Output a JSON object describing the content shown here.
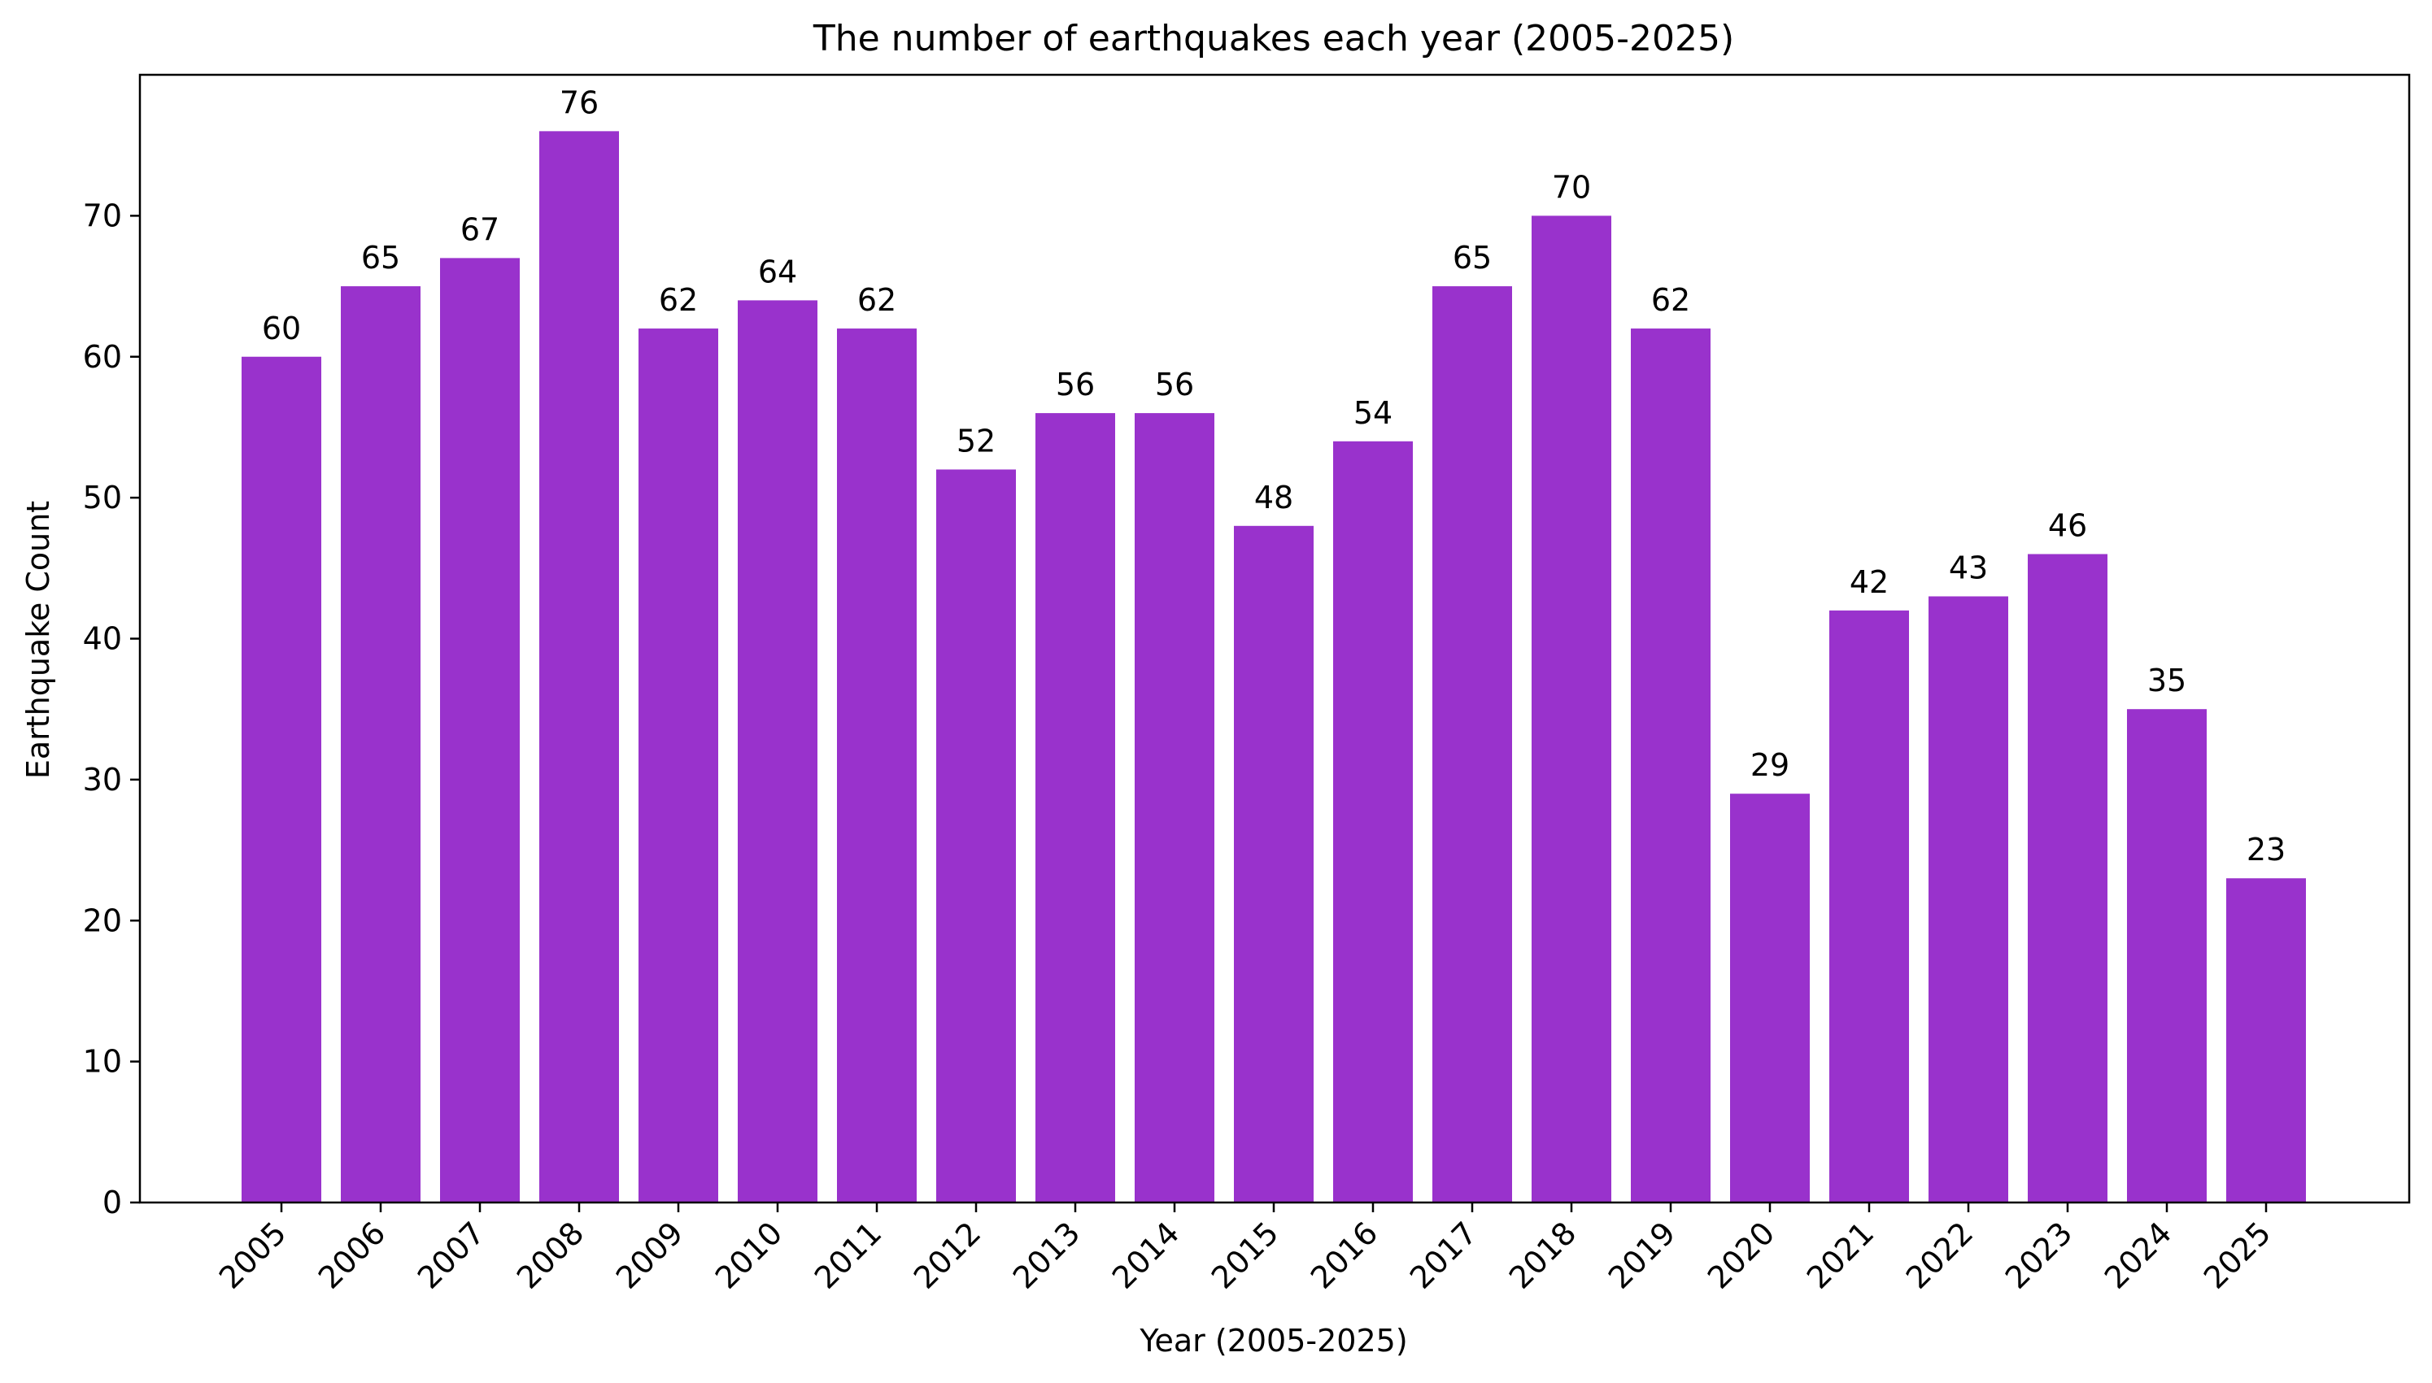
{
  "chart_data": {
    "type": "bar",
    "title": "The number of earthquakes each year (2005-2025)",
    "xlabel": "Year (2005-2025)",
    "ylabel": "Earthquake Count",
    "categories": [
      "2005",
      "2006",
      "2007",
      "2008",
      "2009",
      "2010",
      "2011",
      "2012",
      "2013",
      "2014",
      "2015",
      "2016",
      "2017",
      "2018",
      "2019",
      "2020",
      "2021",
      "2022",
      "2023",
      "2024",
      "2025"
    ],
    "values": [
      60,
      65,
      67,
      76,
      62,
      64,
      62,
      52,
      56,
      56,
      48,
      54,
      65,
      70,
      62,
      29,
      42,
      43,
      46,
      35,
      23
    ],
    "ylim": [
      0,
      80
    ],
    "yticks": [
      0,
      10,
      20,
      30,
      40,
      50,
      60,
      70
    ],
    "grid": false,
    "bar_color": "#9932CC",
    "data_labels": true
  }
}
